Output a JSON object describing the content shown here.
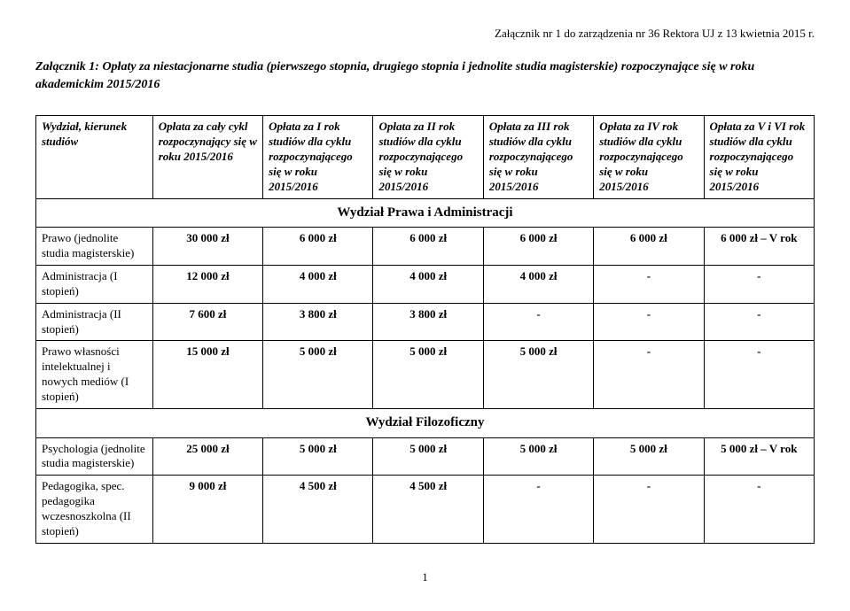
{
  "headerRight": "Załącznik nr 1 do zarządzenia nr 36 Rektora UJ z 13 kwietnia 2015 r.",
  "intro": "Załącznik 1: Opłaty za niestacjonarne studia (pierwszego stopnia, drugiego stopnia i jednolite studia magisterskie) rozpoczynające się w roku akademickim 2015/2016",
  "columns": [
    "Wydział, kierunek studiów",
    "Opłata za cały cykl rozpoczynający się w roku 2015/2016",
    "Opłata za I rok studiów dla cyklu rozpoczynającego się w roku 2015/2016",
    "Opłata za II rok studiów dla cyklu rozpoczynającego się w roku 2015/2016",
    "Opłata za III rok studiów dla cyklu rozpoczynającego się w roku 2015/2016",
    "Opłata za IV rok studiów dla cyklu rozpoczynającego się w roku 2015/2016",
    "Opłata za V i VI rok studiów dla cyklu rozpoczynającego się w roku 2015/2016"
  ],
  "sections": [
    {
      "title": "Wydział Prawa i Administracji",
      "rows": [
        {
          "label": "Prawo (jednolite studia magisterskie)",
          "vals": [
            "30 000 zł",
            "6 000 zł",
            "6 000 zł",
            "6 000 zł",
            "6 000 zł",
            "6 000 zł – V rok"
          ]
        },
        {
          "label": "Administracja (I stopień)",
          "vals": [
            "12 000 zł",
            "4 000 zł",
            "4 000 zł",
            "4 000 zł",
            "-",
            "-"
          ]
        },
        {
          "label": "Administracja (II stopień)",
          "vals": [
            "7 600 zł",
            "3 800 zł",
            "3 800 zł",
            "-",
            "-",
            "-"
          ]
        },
        {
          "label": "Prawo własności intelektualnej i nowych mediów (I stopień)",
          "vals": [
            "15 000 zł",
            "5 000 zł",
            "5 000 zł",
            "5 000 zł",
            "-",
            "-"
          ]
        }
      ]
    },
    {
      "title": "Wydział Filozoficzny",
      "rows": [
        {
          "label": "Psychologia (jednolite studia magisterskie)",
          "vals": [
            "25 000 zł",
            "5 000 zł",
            "5 000 zł",
            "5 000 zł",
            "5 000 zł",
            "5 000 zł – V rok"
          ]
        },
        {
          "label": "Pedagogika, spec. pedagogika wczesnoszkolna (II stopień)",
          "vals": [
            "9 000 zł",
            "4 500 zł",
            "4 500 zł",
            "-",
            "-",
            "-"
          ]
        }
      ]
    }
  ],
  "pageNumber": "1"
}
